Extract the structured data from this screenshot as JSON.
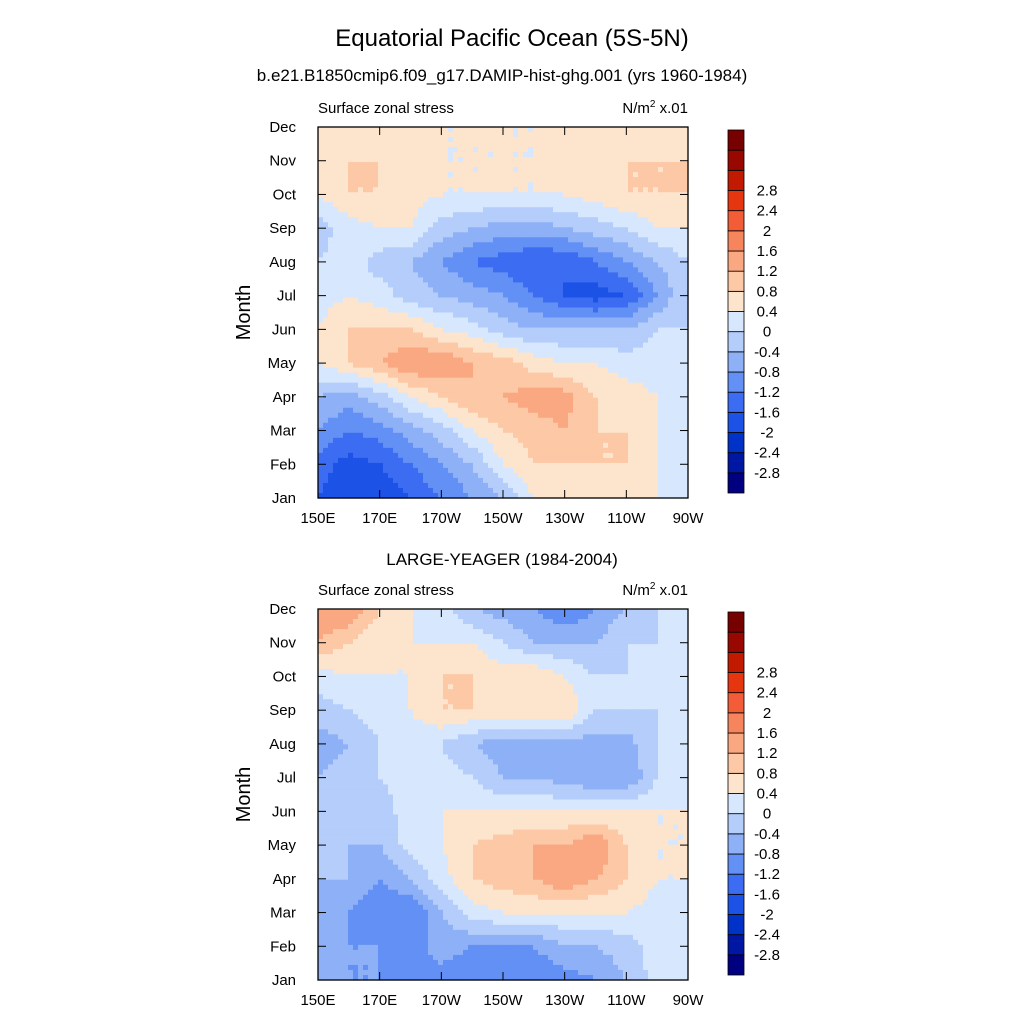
{
  "figure": {
    "title": "Equatorial Pacific Ocean (5S-5N)",
    "subtitle": "b.e21.B1850cmip6.f09_g17.DAMIP-hist-ghg.001 (yrs 1960-1984)"
  },
  "colorbar": {
    "colors": [
      "#000080",
      "#0017a3",
      "#0032c8",
      "#1c52e6",
      "#3c6cf2",
      "#6390f4",
      "#8eb0f7",
      "#b4cdfa",
      "#d7e7fd",
      "#fde4cc",
      "#fcc8a5",
      "#f9a882",
      "#f6855d",
      "#f25c36",
      "#e5360f",
      "#c21a00",
      "#990800",
      "#770000"
    ],
    "levels": [
      -2.8,
      -2.4,
      -2,
      -1.6,
      -1.2,
      -0.8,
      -0.4,
      0,
      0.4,
      0.8,
      1.2,
      1.6,
      2,
      2.4,
      2.8
    ],
    "labels": [
      "-2.8",
      "-2.4",
      "-2",
      "-1.6",
      "-1.2",
      "-0.8",
      "-0.4",
      "0",
      "0.4",
      "0.8",
      "1.2",
      "1.6",
      "2",
      "2.4",
      "2.8"
    ]
  },
  "chart_data": [
    {
      "type": "heatmap",
      "title": "",
      "left_label": "Surface zonal stress",
      "right_label": "N/m",
      "right_label_sup": "2",
      "right_label_suffix": " x.01",
      "xlabel": "",
      "ylabel": "Month",
      "x_ticks": [
        "150E",
        "170E",
        "170W",
        "150W",
        "130W",
        "110W",
        "90W"
      ],
      "x_tick_lon": [
        150,
        170,
        190,
        210,
        230,
        250,
        270
      ],
      "xlim": [
        150,
        270
      ],
      "y_ticks": [
        "Jan",
        "Feb",
        "Mar",
        "Apr",
        "May",
        "Jun",
        "Jul",
        "Aug",
        "Sep",
        "Oct",
        "Nov",
        "Dec"
      ],
      "ylim": [
        1,
        12
      ],
      "grid_lon": [
        150,
        160,
        170,
        180,
        190,
        200,
        210,
        220,
        230,
        240,
        250,
        260,
        270
      ],
      "grid_month": [
        1,
        2,
        3,
        4,
        5,
        6,
        7,
        8,
        9,
        10,
        11,
        12
      ],
      "values": [
        [
          -1.6,
          -2.0,
          -2.0,
          -1.6,
          -1.2,
          -0.8,
          -0.4,
          0.4,
          0.4,
          0.4,
          0.4,
          0.4,
          0.0
        ],
        [
          -1.4,
          -1.8,
          -1.6,
          -1.2,
          -0.8,
          -0.4,
          0.4,
          0.8,
          0.8,
          0.8,
          0.8,
          0.4,
          0.0
        ],
        [
          -0.8,
          -1.2,
          -1.0,
          -0.6,
          -0.2,
          0.4,
          0.8,
          1.0,
          1.2,
          0.8,
          0.8,
          0.4,
          0.0
        ],
        [
          -0.4,
          -0.6,
          -0.2,
          0.4,
          0.8,
          1.2,
          1.2,
          1.4,
          1.4,
          0.8,
          0.6,
          0.4,
          0.0
        ],
        [
          0.4,
          0.8,
          1.2,
          1.6,
          1.6,
          1.2,
          1.0,
          0.6,
          0.4,
          0.4,
          0.2,
          0.2,
          0.0
        ],
        [
          0.4,
          0.8,
          0.8,
          0.8,
          0.4,
          0.2,
          -0.2,
          -0.4,
          -0.4,
          -0.4,
          -0.4,
          0.0,
          0.0
        ],
        [
          0.2,
          0.4,
          0.2,
          -0.2,
          -0.4,
          -0.6,
          -0.8,
          -1.2,
          -1.6,
          -1.8,
          -1.6,
          -0.8,
          0.0
        ],
        [
          0.0,
          0.2,
          -0.2,
          -0.4,
          -0.8,
          -1.2,
          -1.4,
          -1.6,
          -1.6,
          -1.2,
          -0.8,
          -0.4,
          0.0
        ],
        [
          -0.2,
          0.2,
          0.4,
          0.4,
          -0.2,
          -0.4,
          -0.6,
          -0.6,
          -0.4,
          -0.2,
          0.0,
          0.4,
          0.4
        ],
        [
          0.4,
          0.8,
          0.8,
          0.6,
          0.4,
          0.4,
          0.4,
          0.4,
          0.4,
          0.6,
          0.8,
          0.8,
          0.8
        ],
        [
          0.4,
          0.8,
          0.8,
          0.6,
          0.4,
          0.4,
          0.4,
          0.4,
          0.6,
          0.8,
          0.8,
          0.8,
          0.8
        ],
        [
          0.4,
          0.4,
          0.4,
          0.4,
          0.4,
          0.4,
          0.4,
          0.4,
          0.4,
          0.6,
          0.6,
          0.6,
          0.6
        ]
      ]
    },
    {
      "type": "heatmap",
      "title": "LARGE-YEAGER (1984-2004)",
      "left_label": "Surface zonal stress",
      "right_label": "N/m",
      "right_label_sup": "2",
      "right_label_suffix": " x.01",
      "xlabel": "",
      "ylabel": "Month",
      "x_ticks": [
        "150E",
        "170E",
        "170W",
        "150W",
        "130W",
        "110W",
        "90W"
      ],
      "x_tick_lon": [
        150,
        170,
        190,
        210,
        230,
        250,
        270
      ],
      "xlim": [
        150,
        270
      ],
      "y_ticks": [
        "Jan",
        "Feb",
        "Mar",
        "Apr",
        "May",
        "Jun",
        "Jul",
        "Aug",
        "Sep",
        "Oct",
        "Nov",
        "Dec"
      ],
      "ylim": [
        1,
        12
      ],
      "grid_lon": [
        150,
        160,
        170,
        180,
        190,
        200,
        210,
        220,
        230,
        240,
        250,
        260,
        270
      ],
      "grid_month": [
        1,
        2,
        3,
        4,
        5,
        6,
        7,
        8,
        9,
        10,
        11,
        12
      ],
      "values": [
        [
          -0.4,
          -0.8,
          -0.8,
          -0.8,
          -1.0,
          -1.2,
          -1.2,
          -1.2,
          -1.0,
          -0.8,
          -0.4,
          0.2,
          0.4
        ],
        [
          -0.4,
          -0.8,
          -0.8,
          -1.0,
          -0.6,
          -0.8,
          -0.8,
          -0.8,
          -0.4,
          -0.4,
          -0.2,
          0.2,
          0.4
        ],
        [
          -0.4,
          -0.8,
          -1.2,
          -1.2,
          -0.4,
          0.2,
          0.4,
          0.4,
          0.4,
          0.4,
          0.4,
          0.2,
          0.4
        ],
        [
          -0.4,
          -0.4,
          -0.8,
          -0.4,
          0.2,
          0.8,
          1.0,
          1.2,
          1.6,
          1.2,
          0.8,
          0.4,
          0.4
        ],
        [
          -0.2,
          -0.4,
          -0.4,
          0.2,
          0.4,
          0.8,
          1.0,
          1.2,
          1.2,
          1.6,
          0.8,
          0.4,
          0.4
        ],
        [
          0.0,
          -0.2,
          -0.2,
          0.2,
          0.4,
          0.4,
          0.4,
          0.4,
          0.4,
          0.4,
          0.4,
          0.4,
          0.4
        ],
        [
          -0.4,
          -0.2,
          0.0,
          0.2,
          0.2,
          0.0,
          -0.4,
          -0.4,
          -0.6,
          -0.8,
          -0.8,
          0.0,
          0.4
        ],
        [
          -0.6,
          -0.4,
          0.0,
          0.2,
          0.0,
          -0.4,
          -0.6,
          -0.6,
          -0.6,
          -0.6,
          -0.6,
          0.0,
          0.4
        ],
        [
          -0.2,
          0.0,
          0.2,
          0.4,
          0.8,
          0.8,
          0.8,
          0.8,
          0.8,
          0.0,
          0.0,
          0.0,
          0.4
        ],
        [
          0.2,
          0.4,
          0.4,
          0.4,
          0.8,
          0.8,
          0.6,
          0.8,
          0.4,
          0.0,
          0.0,
          0.0,
          0.4
        ],
        [
          1.2,
          0.8,
          0.4,
          0.4,
          0.4,
          0.4,
          0.0,
          -0.4,
          -0.4,
          -0.4,
          0.0,
          0.0,
          0.4
        ],
        [
          1.6,
          1.6,
          0.8,
          0.4,
          0.2,
          -0.4,
          -0.6,
          -0.8,
          -1.2,
          -0.8,
          -0.4,
          0.0,
          0.4
        ]
      ]
    }
  ]
}
